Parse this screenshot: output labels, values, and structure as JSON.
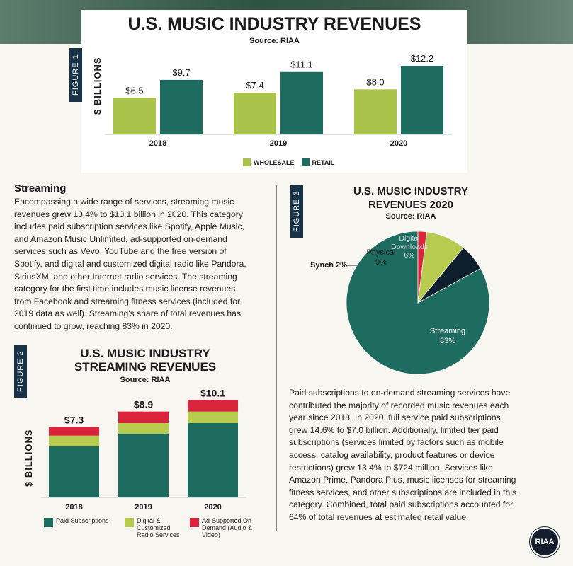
{
  "figure1": {
    "tab": "FIGURE 1",
    "title": "U.S. MUSIC INDUSTRY REVENUES",
    "source": "Source: RIAA",
    "ylabel": "$ BILLIONS",
    "legend": [
      "WHOLESALE",
      "RETAIL"
    ]
  },
  "section": {
    "heading": "Streaming",
    "lines": [
      "Encompassing a wide range of services, streaming music",
      "revenues grew 13.4% to $10.1 billion in 2020. This category",
      "includes paid subscription services like Spotify, Apple Music,",
      "and Amazon Music Unlimited, ad-supported on-demand",
      "services such as Vevo, YouTube and the free version of",
      "Spotify, and digital and customized digital radio like Pandora,",
      "SiriusXM, and other Internet radio services. The streaming",
      "category for the first time includes music license revenues",
      "from Facebook and streaming fitness services (included for",
      "2019 data as well). Streaming's share of total revenues has",
      "continued to grow, reaching 83% in 2020."
    ]
  },
  "figure2": {
    "tab": "FIGURE 2",
    "title_line1": "U.S. MUSIC INDUSTRY",
    "title_line2": "STREAMING REVENUES",
    "source": "Source: RIAA",
    "ylabel": "$ BILLIONS",
    "legend": [
      {
        "label": "Paid Subscriptions",
        "color": "#1e6b5f"
      },
      {
        "label": "Digital & Customized Radio Services",
        "color": "#b7cc4f"
      },
      {
        "label": "Ad-Supported On-Demand (Audio & Video)",
        "color": "#d9243c"
      }
    ]
  },
  "figure3": {
    "tab": "FIGURE 3",
    "title_line1": "U.S. MUSIC INDUSTRY",
    "title_line2": "REVENUES 2020",
    "source": "Source: RIAA"
  },
  "paragraph2": {
    "lines": [
      "Paid subscriptions to on-demand streaming services have",
      "contributed the majority of recorded music revenues each",
      "year since 2018. In 2020, full service paid subscriptions",
      "grew 14.6% to $7.0 billion. Additionally, limited tier paid",
      "subscriptions (services limited by factors such as mobile",
      "access, catalog availability, product features or device",
      "restrictions) grew 13.4% to $724 million. Services like",
      "Amazon Prime, Pandora Plus, music licenses for streaming",
      "fitness services, and other subscriptions are included in this",
      "category. Combined, total paid subscriptions accounted for",
      "64% of total revenues at estimated retail value."
    ]
  },
  "logo": {
    "text": "RIAA"
  },
  "chart_data": [
    {
      "type": "bar",
      "title": "U.S. MUSIC INDUSTRY REVENUES",
      "ylabel": "$ BILLIONS",
      "categories": [
        "2018",
        "2019",
        "2020"
      ],
      "series": [
        {
          "name": "WHOLESALE",
          "values": [
            6.5,
            7.4,
            8.0
          ],
          "labels": [
            "$6.5",
            "$7.4",
            "$8.0"
          ],
          "color": "#a9c34a"
        },
        {
          "name": "RETAIL",
          "values": [
            9.7,
            11.1,
            12.2
          ],
          "labels": [
            "$9.7",
            "$11.1",
            "$12.2"
          ],
          "color": "#1e6b5f"
        }
      ],
      "ylim": [
        0,
        12.2
      ],
      "grid": false,
      "legend_position": "bottom"
    },
    {
      "type": "bar",
      "stacked": true,
      "title": "U.S. MUSIC INDUSTRY STREAMING REVENUES",
      "ylabel": "$ BILLIONS",
      "categories": [
        "2018",
        "2019",
        "2020"
      ],
      "totals": [
        7.3,
        8.9,
        10.1
      ],
      "total_labels": [
        "$7.3",
        "$8.9",
        "$10.1"
      ],
      "series": [
        {
          "name": "Paid Subscriptions",
          "values": [
            5.3,
            6.6,
            7.7
          ],
          "color": "#1e6b5f"
        },
        {
          "name": "Digital & Customized Radio Services",
          "values": [
            1.1,
            1.1,
            1.2
          ],
          "color": "#b7cc4f"
        },
        {
          "name": "Ad-Supported On-Demand (Audio & Video)",
          "values": [
            0.9,
            1.2,
            1.2
          ],
          "color": "#d9243c"
        }
      ],
      "ylim": [
        0,
        10.1
      ],
      "grid": false,
      "legend_position": "bottom"
    },
    {
      "type": "pie",
      "title": "U.S. MUSIC INDUSTRY REVENUES 2020",
      "slices": [
        {
          "label": "Streaming",
          "value": 83,
          "pct": "83%",
          "color": "#1e6b5f"
        },
        {
          "label": "Synch",
          "value": 2,
          "pct": "2%",
          "color": "#d9243c"
        },
        {
          "label": "Physical",
          "value": 9,
          "pct": "9%",
          "color": "#b7cc4f"
        },
        {
          "label": "Digital Downloads",
          "value": 6,
          "pct": "6%",
          "color": "#0e1e2c"
        }
      ]
    }
  ]
}
